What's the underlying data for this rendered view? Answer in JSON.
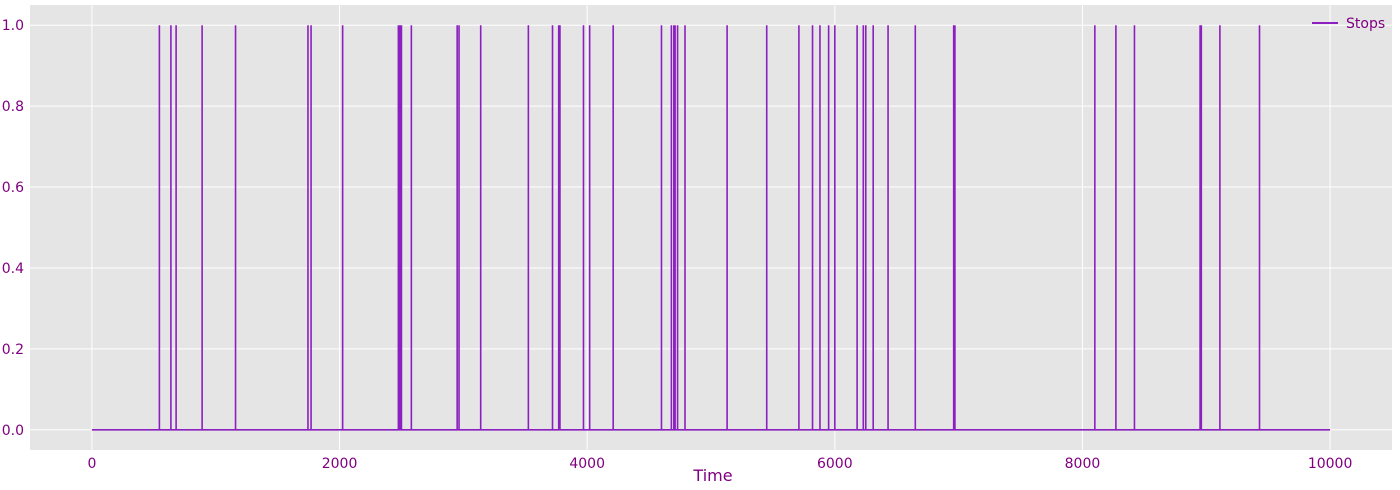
{
  "chart_data": {
    "type": "line",
    "title": "",
    "xlabel": "Time",
    "ylabel": "",
    "xlim": [
      -500,
      10500
    ],
    "ylim": [
      -0.05,
      1.05
    ],
    "xticks": [
      0,
      2000,
      4000,
      6000,
      8000,
      10000
    ],
    "yticks": [
      0.0,
      0.2,
      0.4,
      0.6,
      0.8,
      1.0
    ],
    "xtick_labels": [
      "0",
      "2000",
      "4000",
      "6000",
      "8000",
      "10000"
    ],
    "ytick_labels": [
      "0.0",
      "0.2",
      "0.4",
      "0.6",
      "0.8",
      "1.0"
    ],
    "grid": true,
    "legend": {
      "position": "top-right"
    },
    "colors": {
      "series": "#8b1fbf",
      "background": "#e5e5e5",
      "text": "#800080",
      "grid": "#ffffff"
    },
    "x_range": [
      0,
      10000
    ],
    "baseline": 0,
    "series": [
      {
        "name": "Stops",
        "spike_times": [
          545,
          638,
          680,
          890,
          1160,
          1745,
          1770,
          2025,
          2475,
          2480,
          2490,
          2500,
          2580,
          2950,
          2965,
          3140,
          3525,
          3720,
          3770,
          3780,
          3970,
          4020,
          4210,
          4600,
          4680,
          4700,
          4710,
          4730,
          4790,
          5130,
          5450,
          5710,
          5820,
          5880,
          5950,
          6000,
          6180,
          6230,
          6250,
          6310,
          6430,
          6650,
          6960,
          6970,
          8100,
          8270,
          8420,
          8950,
          8960,
          9110,
          9430
        ],
        "spike_value": 1
      }
    ]
  }
}
